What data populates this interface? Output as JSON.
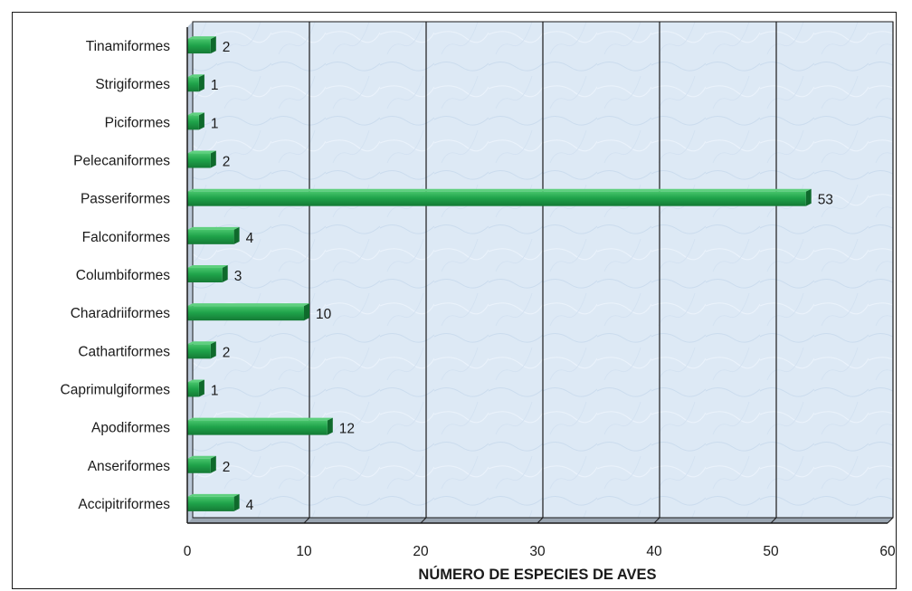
{
  "chart_data": {
    "type": "bar",
    "orientation": "horizontal",
    "categories": [
      "Tinamiformes",
      "Strigiformes",
      "Piciformes",
      "Pelecaniformes",
      "Passeriformes",
      "Falconiformes",
      "Columbiformes",
      "Charadriiformes",
      "Cathartiformes",
      "Caprimulgiformes",
      "Apodiformes",
      "Anseriformes",
      "Accipitriformes"
    ],
    "values": [
      2,
      1,
      1,
      2,
      53,
      4,
      3,
      10,
      2,
      1,
      12,
      2,
      4
    ],
    "title": "",
    "xlabel": "NÚMERO DE ESPECIES DE AVES",
    "ylabel": "",
    "xlim": [
      0,
      60
    ],
    "x_ticks": [
      0,
      10,
      20,
      30,
      40,
      50,
      60
    ],
    "grid": "vertical",
    "legend": "none",
    "bar_color": "#1fa34a",
    "plot_background": "#dde9f5"
  }
}
